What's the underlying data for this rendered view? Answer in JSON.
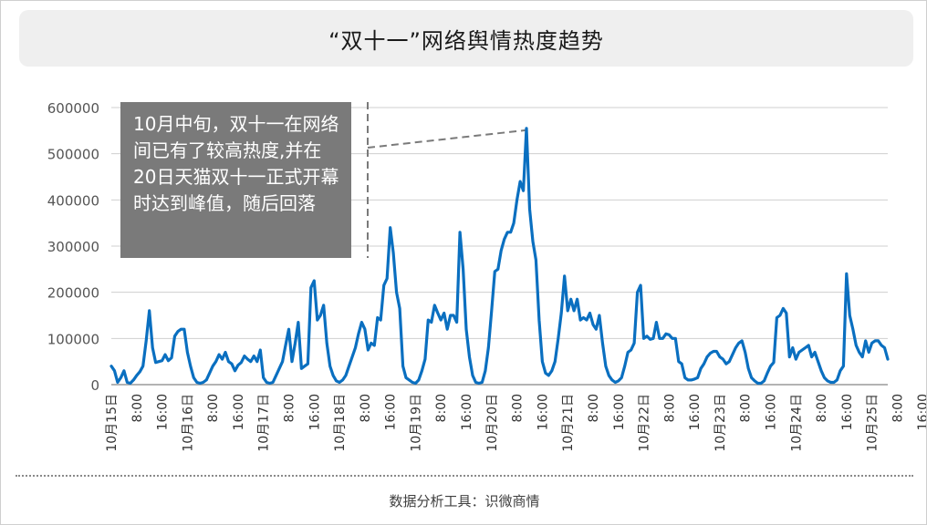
{
  "title": "“双十一”网络舆情热度趋势",
  "source": "数据分析工具：识微商情",
  "annotation": "10月中旬，双十一在网络间已有了较高热度,并在20日天猫双十一正式开幕时达到峰值，随后回落",
  "colors": {
    "line": "#0a6fc0",
    "annotation_bg": "#7a7a7a",
    "grid": "#cfcfcf",
    "title_bg": "#efefef"
  },
  "chart_data": {
    "type": "line",
    "title": "“双十一”网络舆情热度趋势",
    "xlabel": "",
    "ylabel": "",
    "ylim": [
      0,
      600000
    ],
    "yticks": [
      0,
      100000,
      200000,
      300000,
      400000,
      500000,
      600000
    ],
    "xtick_labels": [
      "10月15日",
      "8:00",
      "16:00",
      "10月16日",
      "8:00",
      "16:00",
      "10月17日",
      "8:00",
      "16:00",
      "10月18日",
      "8:00",
      "16:00",
      "10月19日",
      "8:00",
      "16:00",
      "10月20日",
      "8:00",
      "16:00",
      "10月21日",
      "8:00",
      "16:00",
      "10月22日",
      "8:00",
      "16:00",
      "10月23日",
      "8:00",
      "16:00",
      "10月24日",
      "8:00",
      "16:00",
      "10月25日",
      "8:00",
      "16:00"
    ],
    "grid": true,
    "x_unit": "hours since 10月15日 00:00",
    "series": [
      {
        "values": [
          [
            0,
            40000
          ],
          [
            1,
            30000
          ],
          [
            2,
            5000
          ],
          [
            3,
            15000
          ],
          [
            4,
            30000
          ],
          [
            5,
            5000
          ],
          [
            6,
            3000
          ],
          [
            7,
            10000
          ],
          [
            8,
            20000
          ],
          [
            9,
            28000
          ],
          [
            10,
            40000
          ],
          [
            11,
            95000
          ],
          [
            12,
            160000
          ],
          [
            13,
            80000
          ],
          [
            14,
            48000
          ],
          [
            15,
            50000
          ],
          [
            16,
            52000
          ],
          [
            17,
            65000
          ],
          [
            18,
            52000
          ],
          [
            19,
            58000
          ],
          [
            20,
            105000
          ],
          [
            21,
            115000
          ],
          [
            22,
            120000
          ],
          [
            23,
            120000
          ],
          [
            24,
            70000
          ],
          [
            25,
            40000
          ],
          [
            26,
            15000
          ],
          [
            27,
            5000
          ],
          [
            28,
            3000
          ],
          [
            29,
            5000
          ],
          [
            30,
            10000
          ],
          [
            31,
            25000
          ],
          [
            32,
            40000
          ],
          [
            33,
            50000
          ],
          [
            34,
            65000
          ],
          [
            35,
            55000
          ],
          [
            36,
            70000
          ],
          [
            37,
            50000
          ],
          [
            38,
            45000
          ],
          [
            39,
            30000
          ],
          [
            40,
            42000
          ],
          [
            41,
            48000
          ],
          [
            42,
            62000
          ],
          [
            43,
            55000
          ],
          [
            44,
            50000
          ],
          [
            45,
            62000
          ],
          [
            46,
            50000
          ],
          [
            47,
            75000
          ],
          [
            48,
            15000
          ],
          [
            49,
            5000
          ],
          [
            50,
            3000
          ],
          [
            51,
            5000
          ],
          [
            52,
            20000
          ],
          [
            53,
            35000
          ],
          [
            54,
            50000
          ],
          [
            55,
            85000
          ],
          [
            56,
            120000
          ],
          [
            57,
            50000
          ],
          [
            58,
            90000
          ],
          [
            59,
            135000
          ],
          [
            60,
            35000
          ],
          [
            61,
            40000
          ],
          [
            62,
            45000
          ],
          [
            63,
            210000
          ],
          [
            64,
            225000
          ],
          [
            65,
            140000
          ],
          [
            66,
            150000
          ],
          [
            67,
            172000
          ],
          [
            68,
            90000
          ],
          [
            69,
            40000
          ],
          [
            70,
            20000
          ],
          [
            71,
            8000
          ],
          [
            72,
            5000
          ],
          [
            73,
            10000
          ],
          [
            74,
            20000
          ],
          [
            75,
            40000
          ],
          [
            76,
            60000
          ],
          [
            77,
            80000
          ],
          [
            78,
            110000
          ],
          [
            79,
            135000
          ],
          [
            80,
            120000
          ],
          [
            81,
            75000
          ],
          [
            82,
            90000
          ],
          [
            83,
            85000
          ],
          [
            84,
            145000
          ],
          [
            85,
            140000
          ],
          [
            86,
            215000
          ],
          [
            87,
            230000
          ],
          [
            88,
            340000
          ],
          [
            89,
            285000
          ],
          [
            90,
            200000
          ],
          [
            91,
            165000
          ],
          [
            92,
            40000
          ],
          [
            93,
            15000
          ],
          [
            94,
            10000
          ],
          [
            95,
            5000
          ],
          [
            96,
            3000
          ],
          [
            97,
            10000
          ],
          [
            98,
            30000
          ],
          [
            99,
            55000
          ],
          [
            100,
            140000
          ],
          [
            101,
            135000
          ],
          [
            102,
            172000
          ],
          [
            103,
            155000
          ],
          [
            104,
            140000
          ],
          [
            105,
            155000
          ],
          [
            106,
            120000
          ],
          [
            107,
            150000
          ],
          [
            108,
            150000
          ],
          [
            109,
            135000
          ],
          [
            110,
            330000
          ],
          [
            111,
            250000
          ],
          [
            112,
            120000
          ],
          [
            113,
            60000
          ],
          [
            114,
            20000
          ],
          [
            115,
            5000
          ],
          [
            116,
            3000
          ],
          [
            117,
            5000
          ],
          [
            118,
            30000
          ],
          [
            119,
            80000
          ],
          [
            120,
            160000
          ],
          [
            121,
            245000
          ],
          [
            122,
            250000
          ],
          [
            123,
            290000
          ],
          [
            124,
            315000
          ],
          [
            125,
            330000
          ],
          [
            126,
            330000
          ],
          [
            127,
            350000
          ],
          [
            128,
            400000
          ],
          [
            129,
            440000
          ],
          [
            130,
            420000
          ],
          [
            131,
            555000
          ],
          [
            132,
            380000
          ],
          [
            133,
            310000
          ],
          [
            134,
            270000
          ],
          [
            135,
            140000
          ],
          [
            136,
            50000
          ],
          [
            137,
            25000
          ],
          [
            138,
            20000
          ],
          [
            139,
            30000
          ],
          [
            140,
            50000
          ],
          [
            141,
            100000
          ],
          [
            142,
            155000
          ],
          [
            143,
            235000
          ],
          [
            144,
            160000
          ],
          [
            145,
            185000
          ],
          [
            146,
            160000
          ],
          [
            147,
            185000
          ],
          [
            148,
            140000
          ],
          [
            149,
            145000
          ],
          [
            150,
            140000
          ],
          [
            151,
            155000
          ],
          [
            152,
            130000
          ],
          [
            153,
            120000
          ],
          [
            154,
            150000
          ],
          [
            155,
            90000
          ],
          [
            156,
            40000
          ],
          [
            157,
            20000
          ],
          [
            158,
            10000
          ],
          [
            159,
            5000
          ],
          [
            160,
            8000
          ],
          [
            161,
            15000
          ],
          [
            162,
            40000
          ],
          [
            163,
            70000
          ],
          [
            164,
            75000
          ],
          [
            165,
            90000
          ],
          [
            166,
            200000
          ],
          [
            167,
            215000
          ],
          [
            168,
            100000
          ],
          [
            169,
            105000
          ],
          [
            170,
            98000
          ],
          [
            171,
            100000
          ],
          [
            172,
            135000
          ],
          [
            173,
            100000
          ],
          [
            174,
            100000
          ],
          [
            175,
            110000
          ],
          [
            176,
            108000
          ],
          [
            177,
            100000
          ],
          [
            178,
            100000
          ],
          [
            179,
            50000
          ],
          [
            180,
            45000
          ],
          [
            181,
            15000
          ],
          [
            182,
            10000
          ],
          [
            183,
            10000
          ],
          [
            184,
            12000
          ],
          [
            185,
            15000
          ],
          [
            186,
            35000
          ],
          [
            187,
            45000
          ],
          [
            188,
            60000
          ],
          [
            189,
            68000
          ],
          [
            190,
            72000
          ],
          [
            191,
            72000
          ],
          [
            192,
            60000
          ],
          [
            193,
            55000
          ],
          [
            194,
            45000
          ],
          [
            195,
            50000
          ],
          [
            196,
            65000
          ],
          [
            197,
            80000
          ],
          [
            198,
            90000
          ],
          [
            199,
            95000
          ],
          [
            200,
            70000
          ],
          [
            201,
            35000
          ],
          [
            202,
            15000
          ],
          [
            203,
            8000
          ],
          [
            204,
            3000
          ],
          [
            205,
            3000
          ],
          [
            206,
            8000
          ],
          [
            207,
            25000
          ],
          [
            208,
            40000
          ],
          [
            209,
            48000
          ],
          [
            210,
            145000
          ],
          [
            211,
            150000
          ],
          [
            212,
            165000
          ],
          [
            213,
            155000
          ],
          [
            214,
            60000
          ],
          [
            215,
            80000
          ],
          [
            216,
            55000
          ],
          [
            217,
            70000
          ],
          [
            218,
            75000
          ],
          [
            219,
            80000
          ],
          [
            220,
            85000
          ],
          [
            221,
            60000
          ],
          [
            222,
            70000
          ],
          [
            223,
            50000
          ],
          [
            224,
            30000
          ],
          [
            225,
            15000
          ],
          [
            226,
            8000
          ],
          [
            227,
            5000
          ],
          [
            228,
            5000
          ],
          [
            229,
            10000
          ],
          [
            230,
            30000
          ],
          [
            231,
            40000
          ],
          [
            232,
            240000
          ],
          [
            233,
            150000
          ],
          [
            234,
            120000
          ],
          [
            235,
            85000
          ],
          [
            236,
            70000
          ],
          [
            237,
            60000
          ],
          [
            238,
            95000
          ],
          [
            239,
            70000
          ],
          [
            240,
            90000
          ],
          [
            241,
            95000
          ],
          [
            242,
            95000
          ],
          [
            243,
            85000
          ],
          [
            244,
            80000
          ],
          [
            245,
            55000
          ]
        ]
      }
    ]
  }
}
